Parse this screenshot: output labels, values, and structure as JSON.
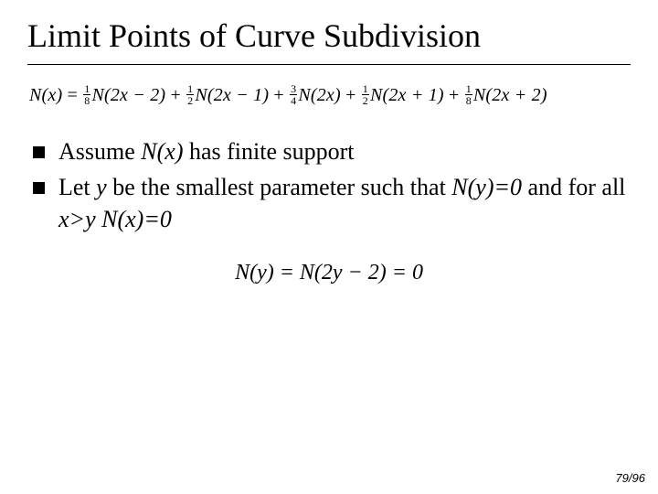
{
  "title": "Limit Points of Curve Subdivision",
  "equation_main": {
    "lhs": "N(x)",
    "eq": "=",
    "terms": [
      {
        "frac_num": "1",
        "frac_den": "8",
        "body": "N(2x − 2)"
      },
      {
        "frac_num": "1",
        "frac_den": "2",
        "body": "N(2x − 1)"
      },
      {
        "frac_num": "3",
        "frac_den": "4",
        "body": "N(2x)"
      },
      {
        "frac_num": "1",
        "frac_den": "2",
        "body": "N(2x + 1)"
      },
      {
        "frac_num": "1",
        "frac_den": "8",
        "body": "N(2x + 2)"
      }
    ],
    "op": "+"
  },
  "bullets": {
    "b1_pre": "Assume ",
    "b1_em": "N(x)",
    "b1_post": " has finite support",
    "b2_pre": "Let ",
    "b2_em1": "y",
    "b2_mid": " be the smallest parameter such that ",
    "b2_em2": "N(y)=0",
    "b2_mid2": " and for all ",
    "b2_em3": "x>y N(x)=0"
  },
  "equation_sub": "N(y) = N(2y − 2) = 0",
  "page_number": "79/96",
  "colors": {
    "bg": "#ffffff",
    "text": "#000000"
  }
}
